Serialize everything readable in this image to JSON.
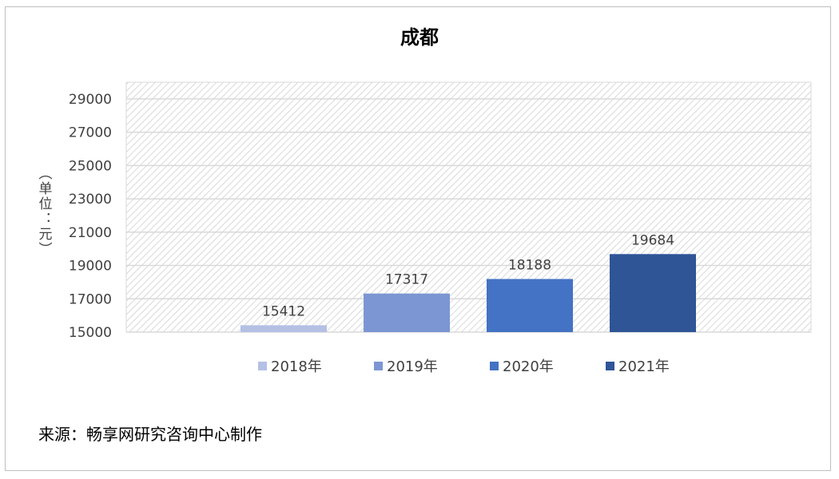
{
  "title": "成都",
  "ylabel": "（单位：元）",
  "source": "来源：畅享网研究咨询中心制作",
  "chart_data": {
    "type": "bar",
    "title": "成都",
    "ylabel": "（单位：元）",
    "xlabel": "",
    "ylim": [
      15000,
      30000
    ],
    "yticks": [
      15000,
      17000,
      19000,
      21000,
      23000,
      25000,
      27000,
      29000
    ],
    "grid": true,
    "legend_position": "bottom",
    "series": [
      {
        "name": "2018年",
        "value": 15412,
        "color": "#b4c0e4"
      },
      {
        "name": "2019年",
        "value": 17317,
        "color": "#7b96d2"
      },
      {
        "name": "2020年",
        "value": 18188,
        "color": "#4472c4"
      },
      {
        "name": "2021年",
        "value": 19684,
        "color": "#2f5597"
      }
    ]
  }
}
